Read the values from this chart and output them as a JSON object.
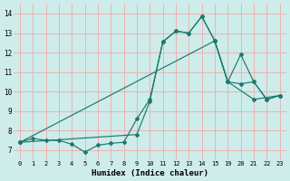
{
  "xlabel": "Humidex (Indice chaleur)",
  "bg_color": "#ceecea",
  "line_color": "#1a7a6e",
  "grid_color": "#f0aaaa",
  "categories": [
    "0",
    "1",
    "2",
    "3",
    "4",
    "5",
    "6",
    "7",
    "8",
    "9",
    "10",
    "11",
    "12",
    "13",
    "14",
    "15",
    "19",
    "20",
    "21",
    "22",
    "23"
  ],
  "yticks": [
    7,
    8,
    9,
    10,
    11,
    12,
    13,
    14
  ],
  "ylim": [
    6.5,
    14.5
  ],
  "line1_x": [
    0,
    1,
    2,
    3,
    4,
    5,
    6,
    7,
    8,
    9,
    10,
    11,
    12,
    13,
    14,
    15,
    16,
    17,
    18,
    19,
    20
  ],
  "line1_y": [
    7.4,
    7.6,
    7.5,
    7.5,
    7.3,
    6.9,
    7.25,
    7.35,
    7.4,
    8.6,
    9.6,
    12.55,
    13.1,
    13.0,
    13.85,
    12.6,
    10.5,
    10.4,
    10.5,
    9.6,
    9.8
  ],
  "line2_x": [
    0,
    9,
    10,
    11,
    12,
    13,
    14,
    15,
    16,
    17,
    18,
    19,
    20
  ],
  "line2_y": [
    7.4,
    7.8,
    9.5,
    12.55,
    13.1,
    13.0,
    13.85,
    12.6,
    10.5,
    11.9,
    10.5,
    9.6,
    9.8
  ],
  "line3_x": [
    0,
    15,
    16,
    18,
    20
  ],
  "line3_y": [
    7.4,
    12.6,
    10.5,
    9.6,
    9.8
  ]
}
